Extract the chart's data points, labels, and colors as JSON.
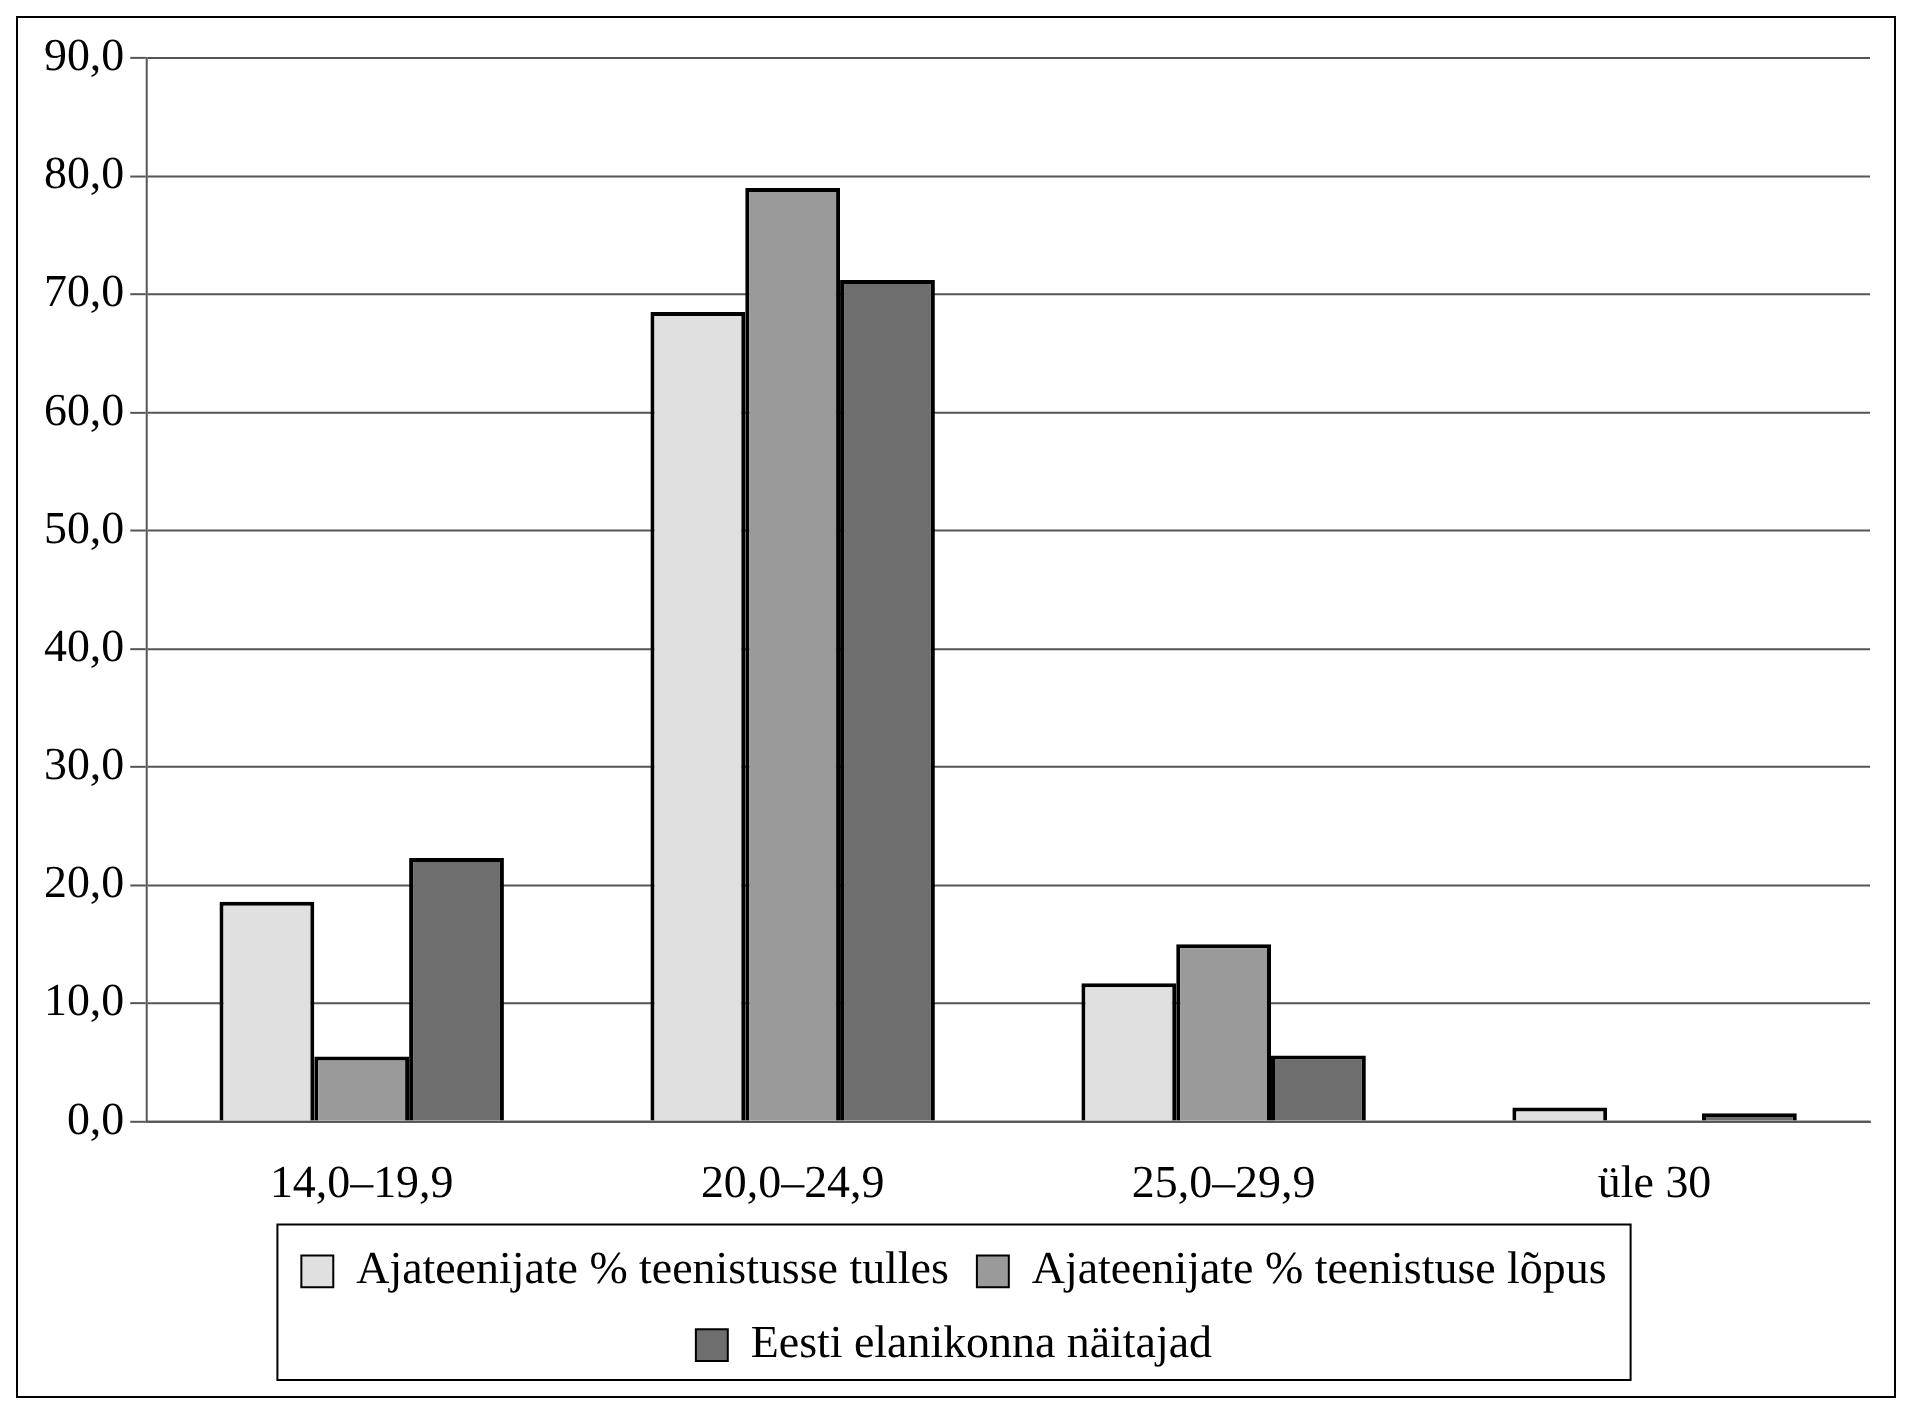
{
  "chart_data": {
    "type": "bar",
    "categories": [
      "14,0–19,9",
      "20,0–24,9",
      "25,0–29,9",
      "üle 30"
    ],
    "series": [
      {
        "name": "Ajateenijate % teenistusse tulles",
        "color": "#e0e0e0",
        "values": [
          18.6,
          68.5,
          11.7,
          1.2
        ]
      },
      {
        "name": "Ajateenijate % teenistuse lõpus",
        "color": "#9a9a9a",
        "values": [
          5.5,
          79.0,
          15.0,
          0
        ]
      },
      {
        "name": "Eesti elanikonna näitajad",
        "color": "#6e6e6e",
        "values": [
          22.3,
          71.2,
          5.6,
          0.7
        ]
      }
    ],
    "ylim": [
      0,
      90
    ],
    "yticks": [
      {
        "value": 0,
        "label": "0,0"
      },
      {
        "value": 10,
        "label": "10,0"
      },
      {
        "value": 20,
        "label": "20,0"
      },
      {
        "value": 30,
        "label": "30,0"
      },
      {
        "value": 40,
        "label": "40,0"
      },
      {
        "value": 50,
        "label": "50,0"
      },
      {
        "value": 60,
        "label": "60,0"
      },
      {
        "value": 70,
        "label": "70,0"
      },
      {
        "value": 80,
        "label": "80,0"
      },
      {
        "value": 90,
        "label": "90,0"
      }
    ],
    "grid": "y",
    "legend": "bottom"
  }
}
